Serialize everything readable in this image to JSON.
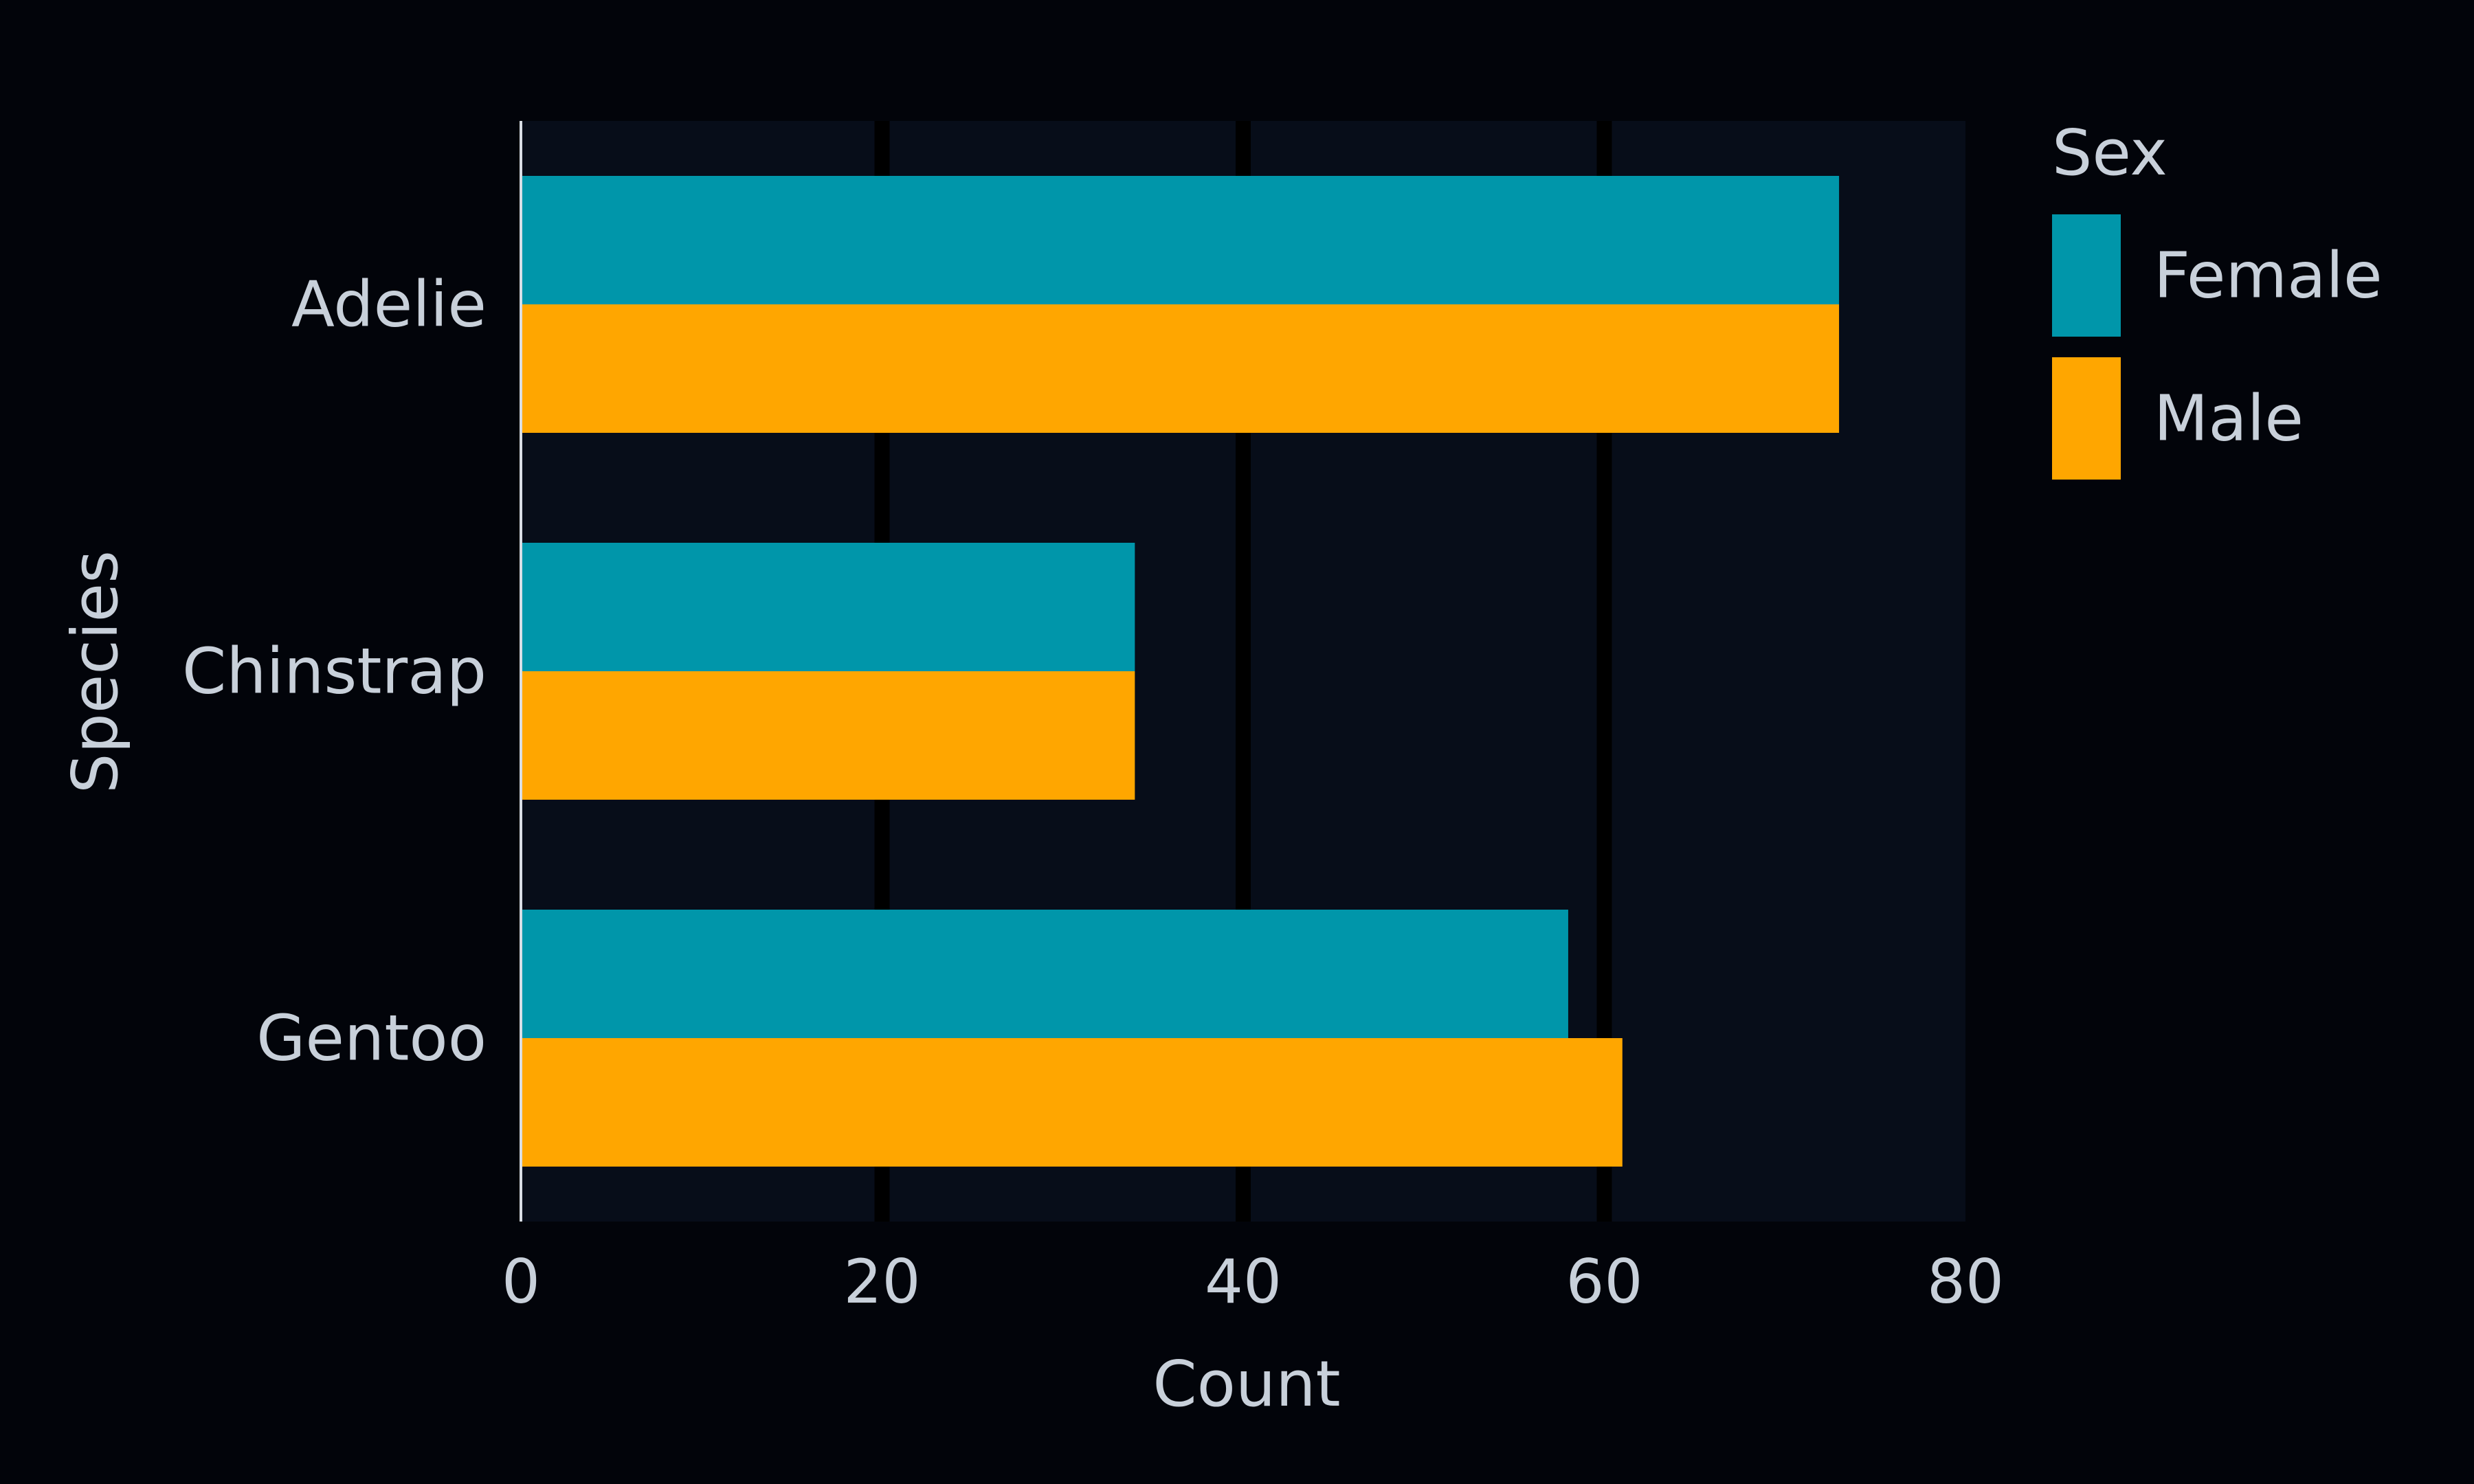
{
  "chart_data": {
    "type": "bar",
    "orientation": "horizontal",
    "categories": [
      "Adelie",
      "Chinstrap",
      "Gentoo"
    ],
    "series": [
      {
        "name": "Female",
        "values": [
          73,
          34,
          58
        ],
        "color": "#0096aa"
      },
      {
        "name": "Male",
        "values": [
          73,
          34,
          61
        ],
        "color": "#ffa600"
      }
    ],
    "xlabel": "Count",
    "ylabel": "Species",
    "xlim": [
      0,
      80
    ],
    "xticks": [
      "0",
      "20",
      "40",
      "60",
      "80"
    ],
    "legend": {
      "title": "Sex",
      "position": "right"
    },
    "grid": "vertical",
    "colors": {
      "background": "#02040a",
      "plot_background": "#070d19",
      "grid": "#000000",
      "text": "#c8d0da",
      "axis": "#d8dde4"
    }
  }
}
